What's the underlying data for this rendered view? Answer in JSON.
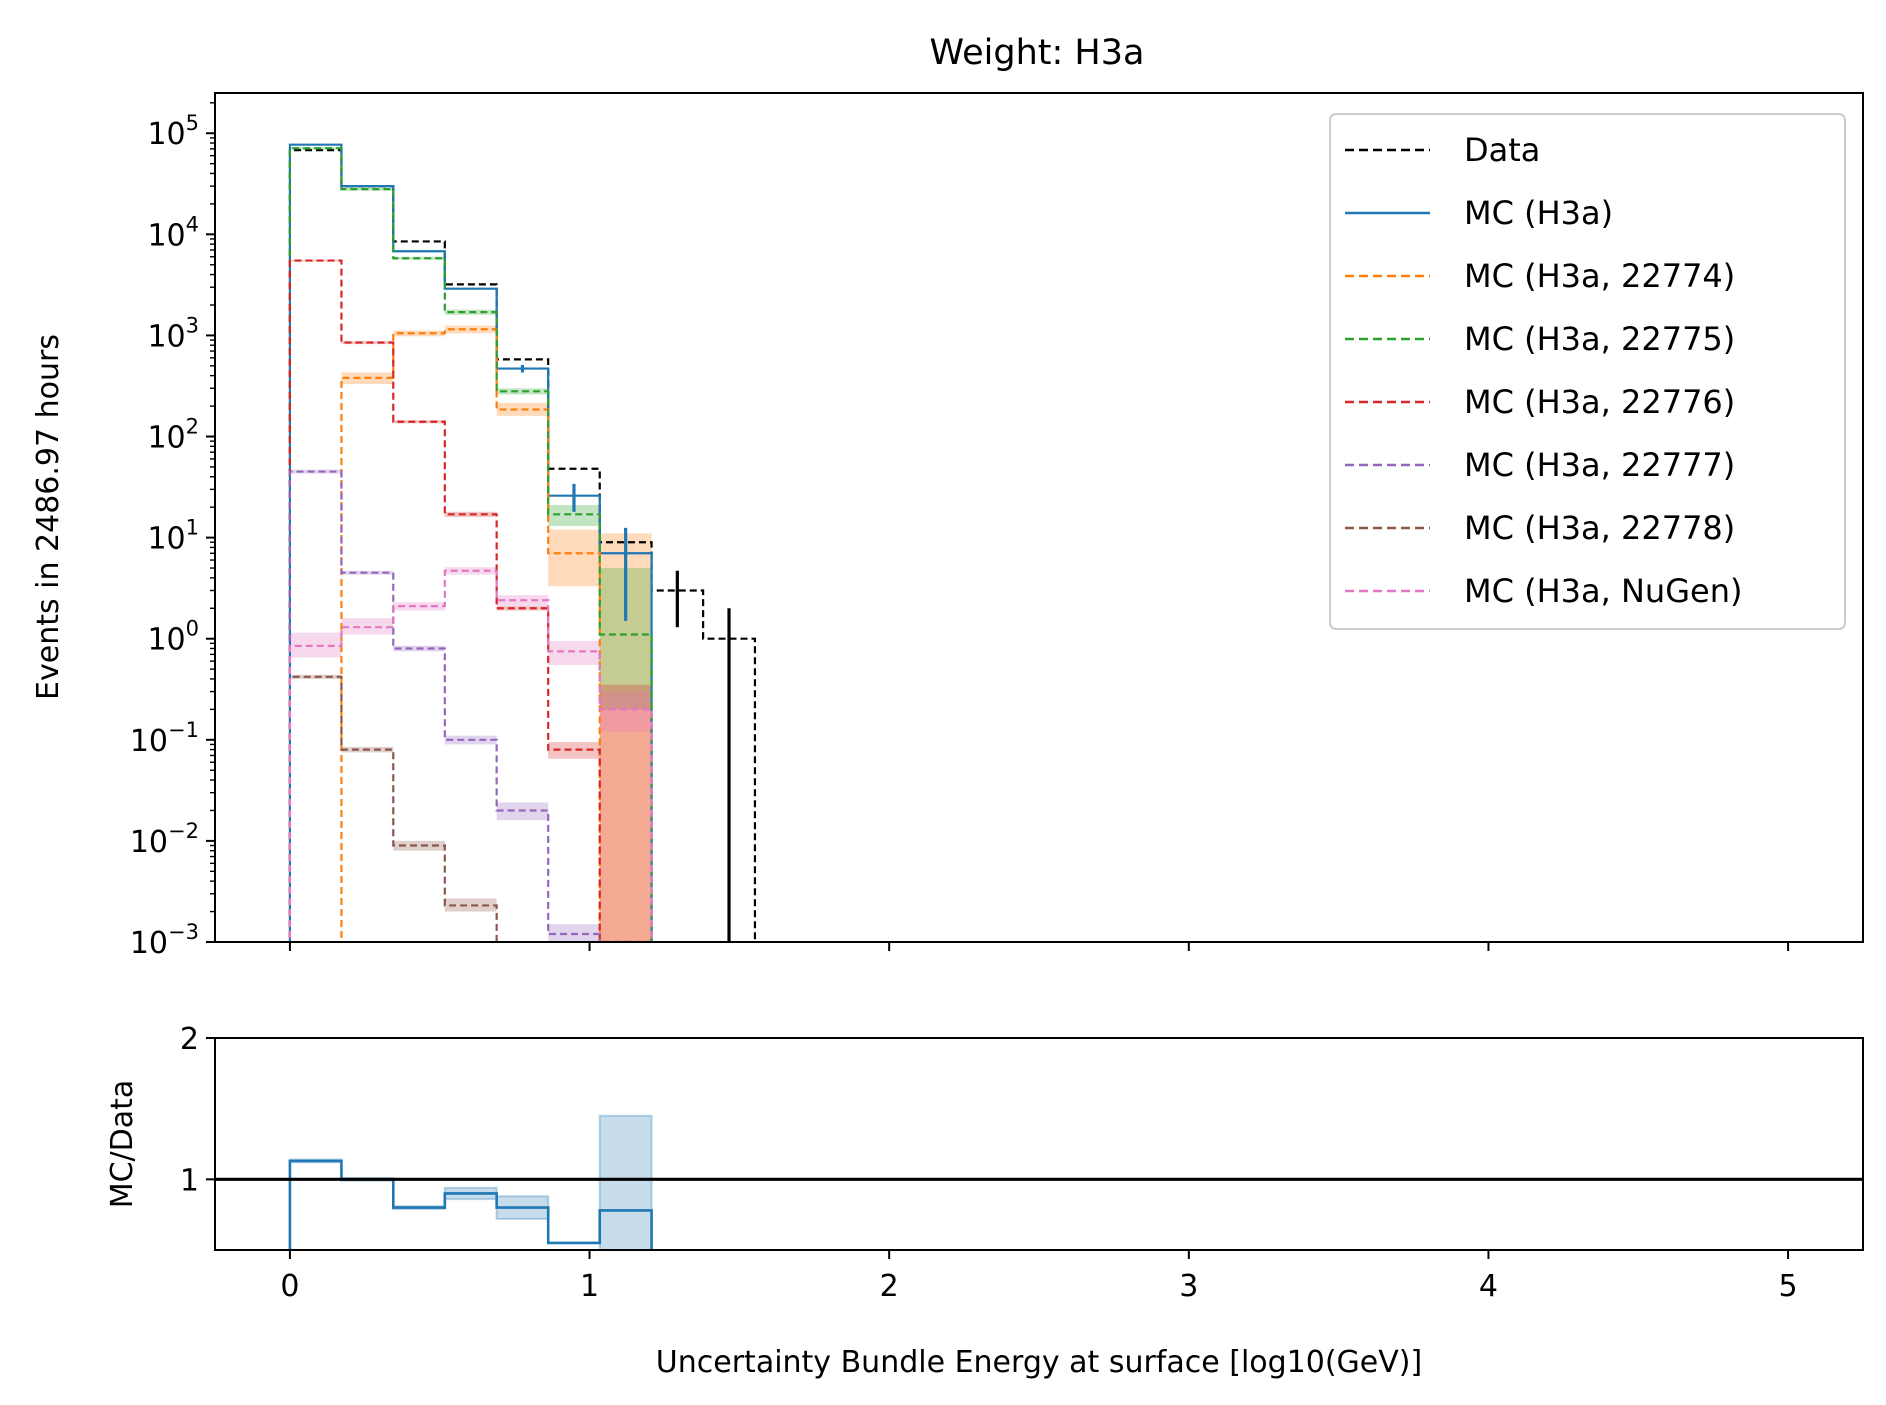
{
  "title": "Weight: H3a",
  "colors": {
    "data": "#000000",
    "h3a": "#1f77b4",
    "22774": "#ff7f0e",
    "22775": "#2ca02c",
    "22776": "#d62728",
    "22777": "#9467bd",
    "22778": "#8c564b",
    "nugen": "#e377c2"
  },
  "chart_data": [
    {
      "type": "histogram",
      "yscale": "log",
      "ylabel": "Events in 2486.97 hours",
      "xlim": [
        -0.25,
        5.25
      ],
      "ylim": [
        0.001,
        250000
      ],
      "bin_edges": [
        0,
        0.172,
        0.345,
        0.517,
        0.69,
        0.862,
        1.034,
        1.207,
        1.379,
        1.552
      ],
      "y_ticks": [
        {
          "value": 100000,
          "base": "10",
          "exp": "5"
        },
        {
          "value": 10000,
          "base": "10",
          "exp": "4"
        },
        {
          "value": 1000,
          "base": "10",
          "exp": "3"
        },
        {
          "value": 100,
          "base": "10",
          "exp": "2"
        },
        {
          "value": 10,
          "base": "10",
          "exp": "1"
        },
        {
          "value": 1,
          "base": "10",
          "exp": "0"
        },
        {
          "value": 0.1,
          "base": "10",
          "exp": "−1"
        },
        {
          "value": 0.01,
          "base": "10",
          "exp": "−2"
        },
        {
          "value": 0.001,
          "base": "10",
          "exp": "−3"
        }
      ],
      "legend_position": "top-right",
      "series": [
        {
          "name": "Data",
          "key": "data",
          "style": "dashed",
          "values": [
            68000,
            30000,
            8500,
            3200,
            580,
            48,
            9,
            3,
            1
          ],
          "errors": [
            0,
            0,
            0,
            0,
            0,
            0,
            0,
            1.7,
            1
          ]
        },
        {
          "name": "MC (H3a)",
          "key": "h3a",
          "style": "solid",
          "values": [
            77000,
            30000,
            6800,
            2900,
            470,
            26,
            7,
            null,
            null
          ],
          "errors": [
            0,
            0,
            0,
            0,
            40,
            8,
            5.5,
            null,
            null
          ]
        },
        {
          "name": "MC (H3a, 22774)",
          "key": "22774",
          "style": "dashed",
          "values": [
            null,
            380,
            1050,
            1150,
            185,
            7,
            0.001,
            null,
            null
          ],
          "band_lo": [
            null,
            330,
            980,
            1050,
            160,
            3.3,
            0.001,
            null,
            null
          ],
          "band_hi": [
            null,
            430,
            1120,
            1250,
            215,
            12,
            11,
            null,
            null
          ]
        },
        {
          "name": "MC (H3a, 22775)",
          "key": "22775",
          "style": "dashed",
          "values": [
            71000,
            28000,
            5800,
            1700,
            280,
            17,
            1.1,
            null,
            null
          ],
          "band_lo": [
            69000,
            27000,
            5600,
            1600,
            260,
            13,
            0.2,
            null,
            null
          ],
          "band_hi": [
            73000,
            29000,
            6000,
            1800,
            300,
            21,
            5,
            null,
            null
          ]
        },
        {
          "name": "MC (H3a, 22776)",
          "key": "22776",
          "style": "dashed",
          "values": [
            5500,
            850,
            140,
            17,
            2,
            0.08,
            0.001,
            null,
            null
          ],
          "band_lo": [
            5400,
            820,
            135,
            16,
            1.9,
            0.065,
            0.001,
            null,
            null
          ],
          "band_hi": [
            5600,
            880,
            145,
            18,
            2.1,
            0.095,
            0.35,
            null,
            null
          ]
        },
        {
          "name": "MC (H3a, 22777)",
          "key": "22777",
          "style": "dashed",
          "values": [
            45,
            4.5,
            0.8,
            0.1,
            0.02,
            0.0012,
            null,
            null,
            null
          ],
          "band_lo": [
            43,
            4.3,
            0.75,
            0.09,
            0.016,
            0.001,
            null,
            null,
            null
          ],
          "band_hi": [
            47,
            4.7,
            0.85,
            0.11,
            0.024,
            0.0015,
            null,
            null,
            null
          ]
        },
        {
          "name": "MC (H3a, 22778)",
          "key": "22778",
          "style": "dashed",
          "values": [
            0.42,
            0.08,
            0.009,
            0.0023,
            0.0008,
            null,
            null,
            null,
            null
          ],
          "band_lo": [
            0.4,
            0.075,
            0.008,
            0.002,
            0.0007,
            null,
            null,
            null,
            null
          ],
          "band_hi": [
            0.44,
            0.085,
            0.01,
            0.0027,
            0.0009,
            null,
            null,
            null,
            null
          ]
        },
        {
          "name": "MC (H3a, NuGen)",
          "key": "nugen",
          "style": "dashed",
          "values": [
            0.85,
            1.3,
            2.1,
            4.7,
            2.4,
            0.75,
            0.2,
            null,
            null
          ],
          "band_lo": [
            0.65,
            1.1,
            1.9,
            4.3,
            2.1,
            0.55,
            0.12,
            null,
            null
          ],
          "band_hi": [
            1.15,
            1.6,
            2.3,
            5.1,
            2.7,
            0.95,
            0.3,
            null,
            null
          ]
        }
      ]
    },
    {
      "type": "histogram",
      "ylabel": "MC/Data",
      "xlabel": "Uncertainty Bundle Energy at surface [log10(GeV)]",
      "xlim": [
        -0.25,
        5.25
      ],
      "ylim": [
        0.5,
        2
      ],
      "reference_line": 1,
      "y_ticks": [
        "1",
        "2"
      ],
      "x_ticks": [
        "0",
        "1",
        "2",
        "3",
        "4",
        "5"
      ],
      "series": [
        {
          "name": "MC/Data",
          "key": "h3a",
          "values": [
            1.13,
            1.0,
            0.8,
            0.9,
            0.8,
            0.55,
            0.78
          ],
          "band_lo": [
            1.12,
            0.99,
            0.79,
            0.86,
            0.72,
            0.55,
            0.5
          ],
          "band_hi": [
            1.14,
            1.01,
            0.81,
            0.94,
            0.88,
            0.55,
            1.45
          ]
        }
      ]
    }
  ]
}
